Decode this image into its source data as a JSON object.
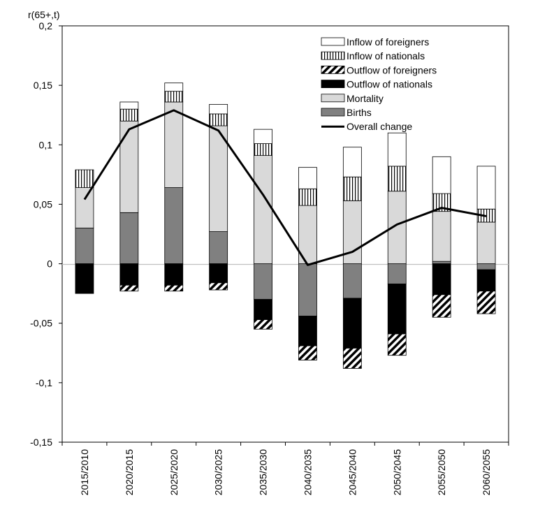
{
  "chart_data": {
    "type": "bar",
    "stacked": true,
    "ylabel": "r(65+,t)",
    "ylim": [
      -0.15,
      0.2
    ],
    "yticks": [
      -0.15,
      -0.1,
      -0.05,
      0,
      0.05,
      0.1,
      0.15,
      0.2
    ],
    "ytick_labels": [
      "-0,15",
      "-0,1",
      "-0,05",
      "0",
      "0,05",
      "0,1",
      "0,15",
      "0,2"
    ],
    "categories": [
      "2015/2010",
      "2020/2015",
      "2025/2020",
      "2030/2025",
      "2035/2030",
      "2040/2035",
      "2045/2040",
      "2050/2045",
      "2055/2050",
      "2060/2055"
    ],
    "legend_position": "top-right",
    "series": [
      {
        "name": "Births",
        "fill": "#808080",
        "values": [
          0.03,
          0.043,
          0.064,
          0.027,
          -0.03,
          -0.044,
          -0.029,
          -0.017,
          0.002,
          -0.005
        ]
      },
      {
        "name": "Mortality",
        "fill": "#d9d9d9",
        "values": [
          0.034,
          0.077,
          0.072,
          0.089,
          0.091,
          0.049,
          0.053,
          0.061,
          0.042,
          0.035
        ]
      },
      {
        "name": "Outflow of nationals",
        "fill": "#000000",
        "values": [
          -0.025,
          -0.018,
          -0.018,
          -0.016,
          -0.017,
          -0.025,
          -0.042,
          -0.042,
          -0.026,
          -0.018
        ]
      },
      {
        "name": "Outflow of foreigners",
        "fill": "hatch-diagonal",
        "values": [
          0,
          -0.005,
          -0.005,
          -0.006,
          -0.008,
          -0.012,
          -0.017,
          -0.018,
          -0.019,
          -0.019
        ]
      },
      {
        "name": "Inflow of nationals",
        "fill": "hatch-vertical",
        "values": [
          0.015,
          0.01,
          0.009,
          0.01,
          0.01,
          0.014,
          0.02,
          0.021,
          0.015,
          0.011
        ]
      },
      {
        "name": "Inflow of foreigners",
        "fill": "#ffffff",
        "values": [
          0,
          0.006,
          0.007,
          0.008,
          0.012,
          0.018,
          0.025,
          0.028,
          0.031,
          0.036
        ]
      }
    ],
    "line": {
      "name": "Overall change",
      "color": "#000000",
      "values": [
        0.054,
        0.113,
        0.129,
        0.112,
        0.058,
        -0.001,
        0.01,
        0.033,
        0.047,
        0.04
      ]
    },
    "legend_order": [
      "Inflow of foreigners",
      "Inflow of nationals",
      "Outflow of foreigners",
      "Outflow of nationals",
      "Mortality",
      "Births",
      "Overall change"
    ]
  }
}
